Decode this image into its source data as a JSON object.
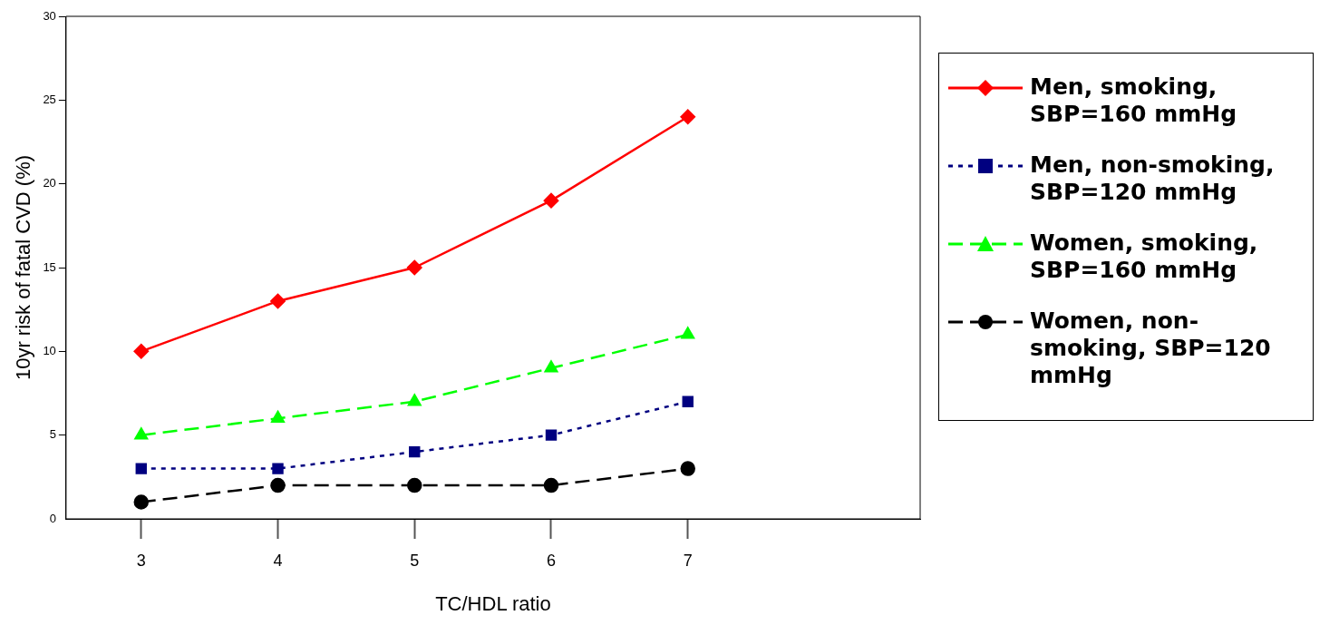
{
  "chart_data": {
    "type": "line",
    "xlabel": "TC/HDL ratio",
    "ylabel": "10yr risk of fatal CVD (%)",
    "x": [
      3,
      4,
      5,
      6,
      7
    ],
    "xlim": [
      2.45,
      8.7
    ],
    "xticks": [
      3,
      4,
      5,
      6,
      7
    ],
    "ylim": [
      0,
      30
    ],
    "yticks": [
      0,
      5,
      10,
      15,
      20,
      25,
      30
    ],
    "grid": false,
    "legend": "right",
    "series": [
      {
        "name": "Men, smoking, SBP=160 mmHg",
        "color": "#ff0000",
        "values": [
          10,
          13,
          15,
          19,
          24
        ],
        "marker": "diamond",
        "line_style": "solid"
      },
      {
        "name": "Men, non-smoking, SBP=120 mmHg",
        "color": "#000080",
        "values": [
          3,
          3,
          4,
          5,
          7
        ],
        "marker": "square",
        "line_style": "dotted"
      },
      {
        "name": "Women, smoking, SBP=160 mmHg",
        "color": "#00ff00",
        "values": [
          5,
          6,
          7,
          9,
          11
        ],
        "marker": "triangle",
        "line_style": "dashed"
      },
      {
        "name": "Women, non-smoking, SBP=120 mmHg",
        "color": "#000000",
        "values": [
          1,
          2,
          2,
          2,
          3
        ],
        "marker": "circle",
        "line_style": "dashed"
      }
    ]
  }
}
